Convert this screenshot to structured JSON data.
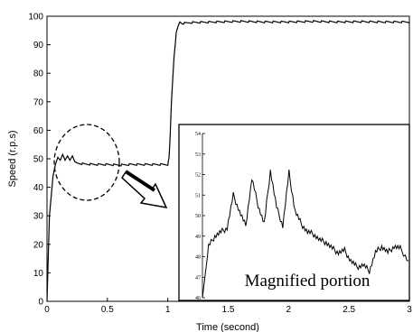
{
  "chart_data": {
    "type": "line",
    "xlabel": "Time (second)",
    "ylabel": "Speed (r.p.s)",
    "xlim": [
      0,
      3
    ],
    "ylim": [
      0,
      100
    ],
    "xticks": [
      "0",
      "0.5",
      "1",
      "1.5",
      "2",
      "2.5",
      "3"
    ],
    "yticks": [
      "0",
      "10",
      "20",
      "30",
      "40",
      "50",
      "60",
      "70",
      "80",
      "90",
      "100"
    ],
    "grid": false,
    "legend": "none",
    "series": [
      {
        "x": [
          0,
          0.02,
          0.05,
          0.07,
          0.09,
          0.11,
          0.13,
          0.15,
          0.17,
          0.19,
          0.21,
          0.23,
          0.25,
          0.3,
          0.4,
          0.5,
          0.6,
          0.7,
          0.8,
          0.9,
          1.0,
          1.01,
          1.02,
          1.03,
          1.05,
          1.07,
          1.09,
          1.1,
          1.12,
          1.2,
          1.4,
          1.6,
          1.8,
          2.0,
          2.2,
          2.4,
          2.6,
          2.8,
          3.0
        ],
        "y": [
          0,
          30,
          44,
          48,
          50.5,
          49.5,
          51.5,
          49.5,
          51,
          49.5,
          51,
          49,
          48.5,
          48.2,
          48,
          48,
          47.8,
          48,
          48,
          48,
          48,
          50,
          58,
          70,
          85,
          94,
          97,
          98,
          97.5,
          97.8,
          98,
          98.2,
          98,
          98,
          98.2,
          98,
          98.1,
          98,
          98
        ]
      }
    ],
    "annotations": [
      "Magnified portion"
    ],
    "inset": {
      "yticks": [
        "46",
        "47",
        "48",
        "49",
        "50",
        "51",
        "52",
        "53",
        "54"
      ],
      "ylim": [
        46,
        54
      ],
      "x": [
        0,
        0.03,
        0.06,
        0.09,
        0.12,
        0.15,
        0.18,
        0.21,
        0.24,
        0.27,
        0.3,
        0.33,
        0.36,
        0.39,
        0.42,
        0.45,
        0.48,
        0.51,
        0.54,
        0.57,
        0.6,
        0.63,
        0.66,
        0.69,
        0.72,
        0.75,
        0.78,
        0.81,
        0.84,
        0.87,
        0.9,
        0.93,
        0.96,
        1.0
      ],
      "y": [
        46,
        48.5,
        49,
        49.2,
        49.4,
        51,
        50.2,
        49.5,
        51.8,
        50.5,
        49.6,
        52.2,
        50.4,
        49.5,
        52.1,
        50.2,
        49.6,
        49.2,
        49.1,
        48.8,
        48.7,
        48.4,
        48.2,
        48.3,
        47.8,
        47.5,
        47.6,
        47.3,
        48.2,
        48.5,
        48.2,
        48.5,
        48.4,
        47.8
      ]
    }
  }
}
